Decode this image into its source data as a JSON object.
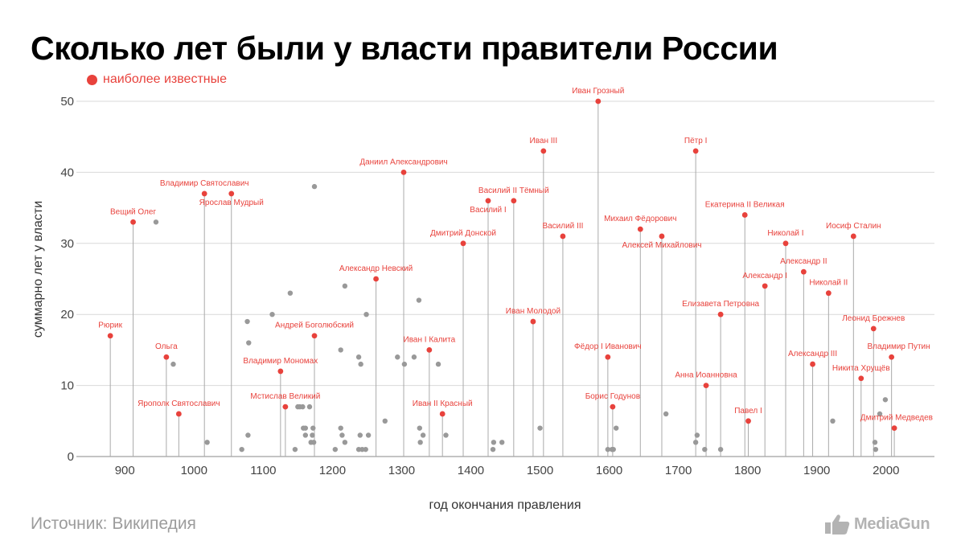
{
  "title": "Сколько лет были у власти правители России",
  "legend": {
    "label": "наиболее известные",
    "color": "#e8423c"
  },
  "source": "Источник: Википедия",
  "brand": "MediaGun",
  "chart_data": {
    "type": "scatter",
    "xlabel": "год окончания правления",
    "ylabel": "суммарно лет у власти",
    "xlim": [
      830,
      2070
    ],
    "ylim": [
      0,
      50
    ],
    "xticks": [
      900,
      1000,
      1100,
      1200,
      1300,
      1400,
      1500,
      1600,
      1700,
      1800,
      1900,
      2000
    ],
    "yticks": [
      0,
      10,
      20,
      30,
      40,
      50
    ],
    "grid": "horizontal",
    "colors": {
      "highlighted": "#e8423c",
      "other": "#999999",
      "stem": "#aaaaaa",
      "grid": "#d9d9d9"
    },
    "highlighted": [
      {
        "name": "Рюрик",
        "x": 879,
        "y": 17
      },
      {
        "name": "Вещий Олег",
        "x": 912,
        "y": 33
      },
      {
        "name": "Ольга",
        "x": 960,
        "y": 14
      },
      {
        "name": "Ярополк Святославич",
        "x": 978,
        "y": 6
      },
      {
        "name": "Владимир Святославич",
        "x": 1015,
        "y": 37
      },
      {
        "name": "Ярослав Мудрый",
        "x": 1054,
        "y": 37
      },
      {
        "name": "Владимир Мономах",
        "x": 1125,
        "y": 12
      },
      {
        "name": "Мстислав Великий",
        "x": 1132,
        "y": 7
      },
      {
        "name": "Андрей Боголюбский",
        "x": 1174,
        "y": 17
      },
      {
        "name": "Александр Невский",
        "x": 1263,
        "y": 25
      },
      {
        "name": "Даниил Александрович",
        "x": 1303,
        "y": 40
      },
      {
        "name": "Иван I Калита",
        "x": 1340,
        "y": 15
      },
      {
        "name": "Иван II Красный",
        "x": 1359,
        "y": 6
      },
      {
        "name": "Дмитрий Донской",
        "x": 1389,
        "y": 30
      },
      {
        "name": "Василий I",
        "x": 1425,
        "y": 36
      },
      {
        "name": "Василий II Тёмный",
        "x": 1462,
        "y": 36
      },
      {
        "name": "Иван Молодой",
        "x": 1490,
        "y": 19
      },
      {
        "name": "Иван III",
        "x": 1505,
        "y": 43
      },
      {
        "name": "Василий III",
        "x": 1533,
        "y": 31
      },
      {
        "name": "Иван Грозный",
        "x": 1584,
        "y": 50
      },
      {
        "name": "Фёдор I Иванович",
        "x": 1598,
        "y": 14
      },
      {
        "name": "Борис Годунов",
        "x": 1605,
        "y": 7
      },
      {
        "name": "Михаил Фёдорович",
        "x": 1645,
        "y": 32
      },
      {
        "name": "Алексей Михайлович",
        "x": 1676,
        "y": 31
      },
      {
        "name": "Пётр I",
        "x": 1725,
        "y": 43
      },
      {
        "name": "Анна Иоанновна",
        "x": 1740,
        "y": 10
      },
      {
        "name": "Елизавета Петровна",
        "x": 1761,
        "y": 20
      },
      {
        "name": "Екатерина II Великая",
        "x": 1796,
        "y": 34
      },
      {
        "name": "Павел I",
        "x": 1801,
        "y": 5
      },
      {
        "name": "Александр I",
        "x": 1825,
        "y": 24
      },
      {
        "name": "Николай I",
        "x": 1855,
        "y": 30
      },
      {
        "name": "Александр II",
        "x": 1881,
        "y": 26
      },
      {
        "name": "Александр III",
        "x": 1894,
        "y": 13
      },
      {
        "name": "Николай II",
        "x": 1917,
        "y": 23
      },
      {
        "name": "Иосиф Сталин",
        "x": 1953,
        "y": 31
      },
      {
        "name": "Никита Хрущёв",
        "x": 1964,
        "y": 11
      },
      {
        "name": "Леонид Брежнев",
        "x": 1982,
        "y": 18
      },
      {
        "name": "Дмитрий Медведев",
        "x": 2012,
        "y": 4
      },
      {
        "name": "Владимир Путин",
        "x": 2008,
        "y": 14
      }
    ],
    "others": [
      [
        945,
        33
      ],
      [
        970,
        13
      ],
      [
        1019,
        2
      ],
      [
        1069,
        1
      ],
      [
        1077,
        19
      ],
      [
        1078,
        3
      ],
      [
        1079,
        16
      ],
      [
        1113,
        20
      ],
      [
        1139,
        23
      ],
      [
        1146,
        1
      ],
      [
        1150,
        7
      ],
      [
        1153,
        7
      ],
      [
        1157,
        7
      ],
      [
        1158,
        4
      ],
      [
        1161,
        4
      ],
      [
        1161,
        3
      ],
      [
        1167,
        7
      ],
      [
        1169,
        2
      ],
      [
        1171,
        3
      ],
      [
        1172,
        4
      ],
      [
        1173,
        2
      ],
      [
        1174,
        38
      ],
      [
        1204,
        1
      ],
      [
        1212,
        15
      ],
      [
        1212,
        4
      ],
      [
        1214,
        3
      ],
      [
        1218,
        24
      ],
      [
        1218,
        2
      ],
      [
        1238,
        14
      ],
      [
        1238,
        1
      ],
      [
        1240,
        3
      ],
      [
        1241,
        13
      ],
      [
        1243,
        1
      ],
      [
        1248,
        1
      ],
      [
        1249,
        20
      ],
      [
        1252,
        3
      ],
      [
        1276,
        5
      ],
      [
        1294,
        14
      ],
      [
        1304,
        13
      ],
      [
        1318,
        14
      ],
      [
        1325,
        22
      ],
      [
        1326,
        4
      ],
      [
        1327,
        2
      ],
      [
        1331,
        3
      ],
      [
        1353,
        13
      ],
      [
        1364,
        3
      ],
      [
        1432,
        1
      ],
      [
        1433,
        2
      ],
      [
        1445,
        2
      ],
      [
        1500,
        4
      ],
      [
        1598,
        1
      ],
      [
        1604,
        1
      ],
      [
        1606,
        1
      ],
      [
        1610,
        4
      ],
      [
        1682,
        6
      ],
      [
        1725,
        2
      ],
      [
        1727,
        3
      ],
      [
        1738,
        1
      ],
      [
        1761,
        1
      ],
      [
        1923,
        5
      ],
      [
        1984,
        2
      ],
      [
        1985,
        1
      ],
      [
        1991,
        6
      ],
      [
        1999,
        8
      ]
    ]
  }
}
